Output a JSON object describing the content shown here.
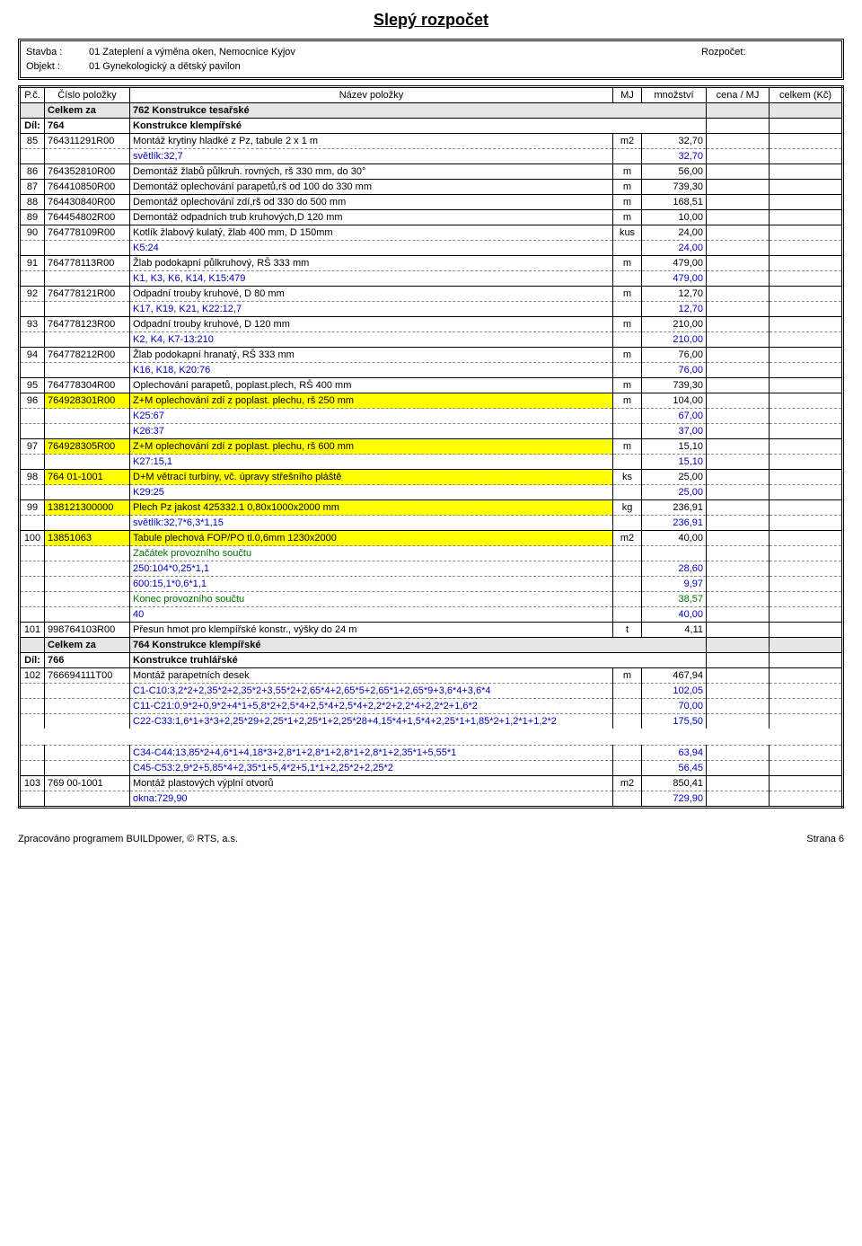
{
  "doc": {
    "title": "Slepý rozpočet",
    "stavba_label": "Stavba :",
    "objekt_label": "Objekt :",
    "stavba": "01 Zateplení a výměna oken, Nemocnice Kyjov",
    "objekt": "01 Gynekologický a dětský pavilon",
    "rozpocet_label": "Rozpočet:"
  },
  "headers": {
    "pc": "P.č.",
    "cislo": "Číslo položky",
    "nazev": "Název položky",
    "mj": "MJ",
    "mnozstvi": "množství",
    "cena": "cena / MJ",
    "celkem": "celkem (Kč)"
  },
  "rows": [
    {
      "type": "section",
      "a": "",
      "b": "Celkem za",
      "c": "762 Konstrukce tesařské"
    },
    {
      "type": "dil",
      "a": "Díl:",
      "b": "764",
      "c": "Konstrukce klempířské"
    },
    {
      "type": "item",
      "pc": "85",
      "num": "764311291R00",
      "name": "Montáž krytiny hladké z Pz, tabule 2 x 1 m",
      "mj": "m2",
      "qty": "32,70"
    },
    {
      "type": "sub",
      "name": "světlík:32,7",
      "qty": "32,70"
    },
    {
      "type": "item",
      "pc": "86",
      "num": "764352810R00",
      "name": "Demontáž žlabů půlkruh. rovných, rš 330 mm, do 30°",
      "mj": "m",
      "qty": "56,00"
    },
    {
      "type": "item",
      "pc": "87",
      "num": "764410850R00",
      "name": "Demontáž oplechování parapetů,rš od 100 do 330 mm",
      "mj": "m",
      "qty": "739,30"
    },
    {
      "type": "item",
      "pc": "88",
      "num": "764430840R00",
      "name": "Demontáž oplechování zdí,rš od 330 do 500 mm",
      "mj": "m",
      "qty": "168,51"
    },
    {
      "type": "item",
      "pc": "89",
      "num": "764454802R00",
      "name": "Demontáž odpadních trub kruhových,D 120 mm",
      "mj": "m",
      "qty": "10,00"
    },
    {
      "type": "item",
      "pc": "90",
      "num": "764778109R00",
      "name": "Kotlík žlabový kulatý, žlab 400 mm, D 150mm",
      "mj": "kus",
      "qty": "24,00"
    },
    {
      "type": "sub",
      "name": "K5:24",
      "qty": "24,00"
    },
    {
      "type": "item",
      "pc": "91",
      "num": "764778113R00",
      "name": "Žlab podokapní půlkruhový, RŠ 333 mm",
      "mj": "m",
      "qty": "479,00"
    },
    {
      "type": "sub",
      "name": "K1, K3, K6, K14, K15:479",
      "qty": "479,00"
    },
    {
      "type": "item",
      "pc": "92",
      "num": "764778121R00",
      "name": "Odpadní trouby kruhové, D 80 mm",
      "mj": "m",
      "qty": "12,70"
    },
    {
      "type": "sub",
      "name": "K17, K19, K21, K22:12,7",
      "qty": "12,70"
    },
    {
      "type": "item",
      "pc": "93",
      "num": "764778123R00",
      "name": "Odpadní trouby kruhové, D 120 mm",
      "mj": "m",
      "qty": "210,00"
    },
    {
      "type": "sub",
      "name": "K2, K4, K7-13:210",
      "qty": "210,00"
    },
    {
      "type": "item",
      "pc": "94",
      "num": "764778212R00",
      "name": "Žlab podokapní hranatý, RŠ 333 mm",
      "mj": "m",
      "qty": "76,00"
    },
    {
      "type": "sub",
      "name": "K16, K18, K20:76",
      "qty": "76,00"
    },
    {
      "type": "item",
      "pc": "95",
      "num": "764778304R00",
      "name": "Oplechování parapetů, poplast.plech, RŠ 400 mm",
      "mj": "m",
      "qty": "739,30"
    },
    {
      "type": "item",
      "pc": "96",
      "num": "764928301R00",
      "name": "Z+M oplechování zdí z poplast. plechu, rš 250 mm",
      "mj": "m",
      "qty": "104,00",
      "hl": true
    },
    {
      "type": "sub",
      "name": "K25:67",
      "qty": "67,00"
    },
    {
      "type": "sub",
      "name": "K26:37",
      "qty": "37,00"
    },
    {
      "type": "item",
      "pc": "97",
      "num": "764928305R00",
      "name": "Z+M oplechování zdí z poplast. plechu, rš 600 mm",
      "mj": "m",
      "qty": "15,10",
      "hl": true
    },
    {
      "type": "sub",
      "name": "K27:15,1",
      "qty": "15,10"
    },
    {
      "type": "item",
      "pc": "98",
      "num": "764 01-1001",
      "name": "D+M větrací turbíny, vč. úpravy střešního pláště",
      "mj": "ks",
      "qty": "25,00",
      "hl": true
    },
    {
      "type": "sub",
      "name": "K29:25",
      "qty": "25,00"
    },
    {
      "type": "item",
      "pc": "99",
      "num": "138121300000",
      "name": "Plech Pz jakost 425332.1  0,80x1000x2000 mm",
      "mj": "kg",
      "qty": "236,91",
      "hl": true
    },
    {
      "type": "sub",
      "name": "světlík:32,7*6,3*1,15",
      "qty": "236,91"
    },
    {
      "type": "item",
      "pc": "100",
      "num": "13851063",
      "name": "Tabule plechová FOP/PO tl.0,6mm 1230x2000",
      "mj": "m2",
      "qty": "40,00",
      "hl": true
    },
    {
      "type": "sub-green",
      "name": "Začátek provozního součtu",
      "qty": ""
    },
    {
      "type": "sub",
      "name": "250:104*0,25*1,1",
      "qty": "28,60"
    },
    {
      "type": "sub",
      "name": "600:15,1*0,6*1,1",
      "qty": "9,97"
    },
    {
      "type": "sub-green",
      "name": "Konec provozního součtu",
      "qty": "38,57"
    },
    {
      "type": "sub",
      "name": "40",
      "qty": "40,00"
    },
    {
      "type": "item",
      "pc": "101",
      "num": "998764103R00",
      "name": "Přesun hmot pro klempířské konstr., výšky do 24 m",
      "mj": "t",
      "qty": "4,11"
    },
    {
      "type": "section",
      "a": "",
      "b": "Celkem za",
      "c": "764 Konstrukce klempířské"
    },
    {
      "type": "dil",
      "a": "Díl:",
      "b": "766",
      "c": "Konstrukce truhlářské"
    },
    {
      "type": "item",
      "pc": "102",
      "num": "766694111T00",
      "name": "Montáž parapetních desek",
      "mj": "m",
      "qty": "467,94"
    },
    {
      "type": "sub",
      "name": "C1-C10:3,2*2+2,35*2+2,35*2+3,55*2+2,65*4+2,65*5+2,65*1+2,65*9+3,6*4+3,6*4",
      "qty": "102,05"
    },
    {
      "type": "sub",
      "name": "C11-C21:0,9*2+0,9*2+4*1+5,8*2+2,5*4+2,5*4+2,5*4+2,2*2+2,2*4+2,2*2+1,6*2",
      "qty": "70,00"
    },
    {
      "type": "sub",
      "name": "C22-C33:1,6*1+3*3+2,25*29+2,25*1+2,25*1+2,25*28+4,15*4+1,5*4+2,25*1+1,85*2+1,2*1+1,2*2",
      "qty": "175,50"
    },
    {
      "type": "spacer"
    },
    {
      "type": "sub",
      "name": "C34-C44:13,85*2+4,6*1+4,18*3+2,8*1+2,8*1+2,8*1+2,8*1+2,35*1+5,55*1",
      "qty": "63,94"
    },
    {
      "type": "sub",
      "name": "C45-C53:2,9*2+5,85*4+2,35*1+5,4*2+5,1*1+2,25*2+2,25*2",
      "qty": "56,45"
    },
    {
      "type": "item",
      "pc": "103",
      "num": "769 00-1001",
      "name": "Montáž plastových výplní otvorů",
      "mj": "m2",
      "qty": "850,41"
    },
    {
      "type": "sub",
      "name": "okna:729,90",
      "qty": "729,90"
    }
  ],
  "footer": {
    "left": "Zpracováno programem BUILDpower,  © RTS, a.s.",
    "right": "Strana 6"
  }
}
